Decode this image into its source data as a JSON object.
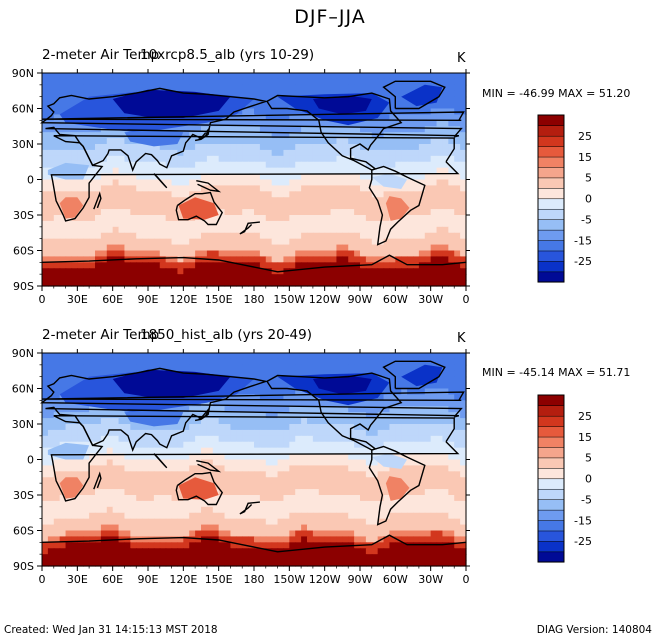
{
  "figure": {
    "title": "DJF–JJA",
    "footer_left": "Created: Wed Jan 31 14:15:13 MST 2018",
    "footer_right": "DIAG Version: 140804"
  },
  "palette": [
    "#000a96",
    "#0a32c8",
    "#2855dc",
    "#4678e6",
    "#6e9bf0",
    "#96bef5",
    "#bed7fa",
    "#dcebfc",
    "#fde6dc",
    "#fac8b4",
    "#f5a58c",
    "#f08264",
    "#e65a3c",
    "#d2371e",
    "#b41e0f",
    "#8c0000"
  ],
  "chart_data": [
    {
      "type": "heatmap",
      "panel": "top",
      "title": "2-meter Air Temp",
      "case_label": "10xrcp8.5_alb (yrs 10-29)",
      "units": "K",
      "min_max_text": "MIN = -46.99 MAX =  51.20",
      "min": -46.99,
      "max": 51.2,
      "x_ticks": [
        "0",
        "30E",
        "60E",
        "90E",
        "120E",
        "150E",
        "180",
        "150W",
        "120W",
        "90W",
        "60W",
        "30W",
        "0"
      ],
      "y_ticks": [
        "90N",
        "60N",
        "30N",
        "0",
        "30S",
        "60S",
        "90S"
      ],
      "lon_range": [
        0,
        360
      ],
      "lat_range": [
        -90,
        90
      ],
      "colorbar_levels": [
        -35,
        -30,
        -25,
        -20,
        -15,
        -10,
        -5,
        -2.5,
        0,
        2.5,
        5,
        10,
        15,
        20,
        25,
        30
      ],
      "colorbar_labels": [
        "25",
        "15",
        "5",
        "0",
        "-5",
        "-15",
        "-25"
      ]
    },
    {
      "type": "heatmap",
      "panel": "bottom",
      "title": "2-meter Air Temp",
      "case_label": "1850_hist_alb (yrs 20-49)",
      "units": "K",
      "min_max_text": "MIN = -45.14 MAX =  51.71",
      "min": -45.14,
      "max": 51.71,
      "x_ticks": [
        "0",
        "30E",
        "60E",
        "90E",
        "120E",
        "150E",
        "180",
        "150W",
        "120W",
        "90W",
        "60W",
        "30W",
        "0"
      ],
      "y_ticks": [
        "90N",
        "60N",
        "30N",
        "0",
        "30S",
        "60S",
        "90S"
      ],
      "lon_range": [
        0,
        360
      ],
      "lat_range": [
        -90,
        90
      ],
      "colorbar_levels": [
        -35,
        -30,
        -25,
        -20,
        -15,
        -10,
        -5,
        -2.5,
        0,
        2.5,
        5,
        10,
        15,
        20,
        25,
        30
      ],
      "colorbar_labels": [
        "25",
        "15",
        "5",
        "0",
        "-5",
        "-15",
        "-25"
      ]
    }
  ]
}
